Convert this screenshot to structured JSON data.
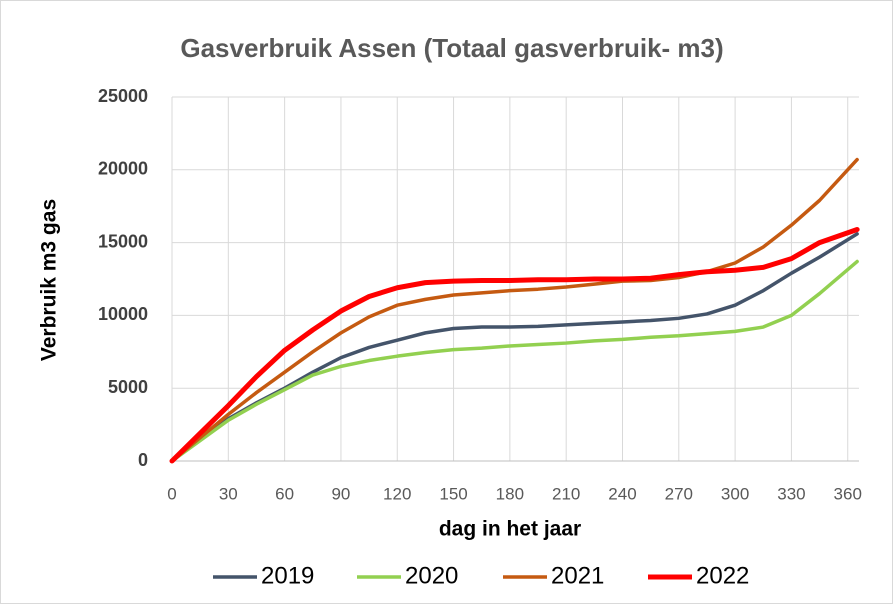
{
  "chart_data": {
    "type": "line",
    "title": "Gasverbruik Assen (Totaal gasverbruik- m3)",
    "xlabel": "dag in het jaar",
    "ylabel": "Verbruik m3 gas",
    "x": [
      0,
      15,
      30,
      45,
      60,
      75,
      90,
      105,
      120,
      135,
      150,
      165,
      180,
      195,
      210,
      225,
      240,
      255,
      270,
      285,
      300,
      315,
      330,
      345,
      365
    ],
    "series": [
      {
        "name": "2019",
        "color": "#44546a",
        "values": [
          0,
          1500,
          2900,
          4000,
          5000,
          6100,
          7100,
          7800,
          8300,
          8800,
          9100,
          9200,
          9200,
          9250,
          9350,
          9450,
          9550,
          9650,
          9800,
          10100,
          10700,
          11700,
          12900,
          14000,
          15600
        ]
      },
      {
        "name": "2020",
        "color": "#92d050",
        "values": [
          0,
          1400,
          2800,
          3900,
          4900,
          5900,
          6500,
          6900,
          7200,
          7450,
          7650,
          7750,
          7900,
          8000,
          8100,
          8250,
          8350,
          8500,
          8600,
          8750,
          8900,
          9200,
          10000,
          11500,
          13700
        ]
      },
      {
        "name": "2021",
        "color": "#c55a11",
        "values": [
          0,
          1600,
          3200,
          4700,
          6100,
          7500,
          8800,
          9900,
          10700,
          11100,
          11400,
          11550,
          11700,
          11800,
          11950,
          12150,
          12350,
          12400,
          12600,
          13000,
          13600,
          14700,
          16200,
          17900,
          20700
        ]
      },
      {
        "name": "2022",
        "color": "#ff0000",
        "values": [
          0,
          1900,
          3800,
          5800,
          7600,
          9000,
          10300,
          11300,
          11900,
          12250,
          12350,
          12400,
          12400,
          12450,
          12450,
          12500,
          12500,
          12550,
          12800,
          13000,
          13100,
          13300,
          13900,
          15000,
          15900
        ]
      }
    ],
    "xlim": [
      0,
      366
    ],
    "ylim": [
      0,
      25000
    ],
    "xticks": [
      0,
      30,
      60,
      90,
      120,
      150,
      180,
      210,
      240,
      270,
      300,
      330,
      360
    ],
    "yticks": [
      0,
      5000,
      10000,
      15000,
      20000,
      25000
    ],
    "grid": true,
    "legend": "bottom"
  }
}
